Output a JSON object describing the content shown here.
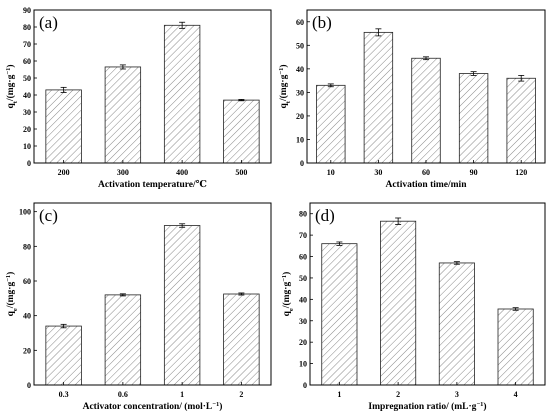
{
  "chart_data": [
    {
      "type": "bar",
      "panel_label": "(a)",
      "categories": [
        "200",
        "300",
        "400",
        "500"
      ],
      "values": [
        43,
        56.5,
        81,
        37
      ],
      "errors": [
        1.5,
        1.2,
        1.8,
        0.4
      ],
      "xlabel": "Activation temperature/℃",
      "ylabel": "q",
      "ylabel_sub": "t",
      "ylabel_unit": "/(mg·g",
      "ylabel_sup": "−1",
      "ylabel_close": ")",
      "ylim": [
        0,
        90
      ],
      "yticks": [
        0,
        10,
        20,
        30,
        40,
        50,
        60,
        70,
        80,
        90
      ],
      "grid": false,
      "bar_pattern": "diagonal-hatch"
    },
    {
      "type": "bar",
      "panel_label": "(b)",
      "categories": [
        "10",
        "30",
        "60",
        "90",
        "120"
      ],
      "values": [
        33,
        55.5,
        44.5,
        38,
        36
      ],
      "errors": [
        0.6,
        1.5,
        0.6,
        0.8,
        1.2
      ],
      "xlabel": "Activation time/min",
      "ylabel": "q",
      "ylabel_sub": "t",
      "ylabel_unit": "/(mg·g",
      "ylabel_sup": "−1",
      "ylabel_close": ")",
      "ylim": [
        0,
        65
      ],
      "yticks": [
        0,
        10,
        20,
        30,
        40,
        50,
        60
      ],
      "grid": false,
      "bar_pattern": "diagonal-hatch"
    },
    {
      "type": "bar",
      "panel_label": "(c)",
      "categories": [
        "0.3",
        "0.6",
        "1",
        "2"
      ],
      "values": [
        34,
        52,
        92,
        52.5
      ],
      "errors": [
        1.0,
        0.6,
        1.0,
        0.6
      ],
      "xlabel": "Activator concentration/ (mol·L",
      "xlabel_sup": "−1",
      "xlabel_close": ")",
      "ylabel": "q",
      "ylabel_sub": "e",
      "ylabel_unit": "/(mg·g",
      "ylabel_sup": "−1",
      "ylabel_close": ")",
      "ylim": [
        0,
        105
      ],
      "yticks": [
        0,
        20,
        40,
        60,
        80,
        100
      ],
      "grid": false,
      "bar_pattern": "diagonal-hatch"
    },
    {
      "type": "bar",
      "panel_label": "(d)",
      "categories": [
        "1",
        "2",
        "3",
        "4"
      ],
      "values": [
        66,
        76.5,
        57,
        35.5
      ],
      "errors": [
        0.8,
        1.5,
        0.6,
        0.6
      ],
      "xlabel": "Impregnation ratio/ (mL·g",
      "xlabel_sup": "−1",
      "xlabel_close": ")",
      "ylabel": "q",
      "ylabel_sub": "e",
      "ylabel_unit": "/(mg·g",
      "ylabel_sup": "−1",
      "ylabel_close": ")",
      "ylim": [
        0,
        85
      ],
      "yticks": [
        0,
        10,
        20,
        30,
        40,
        50,
        60,
        70,
        80
      ],
      "grid": false,
      "bar_pattern": "diagonal-hatch"
    }
  ]
}
